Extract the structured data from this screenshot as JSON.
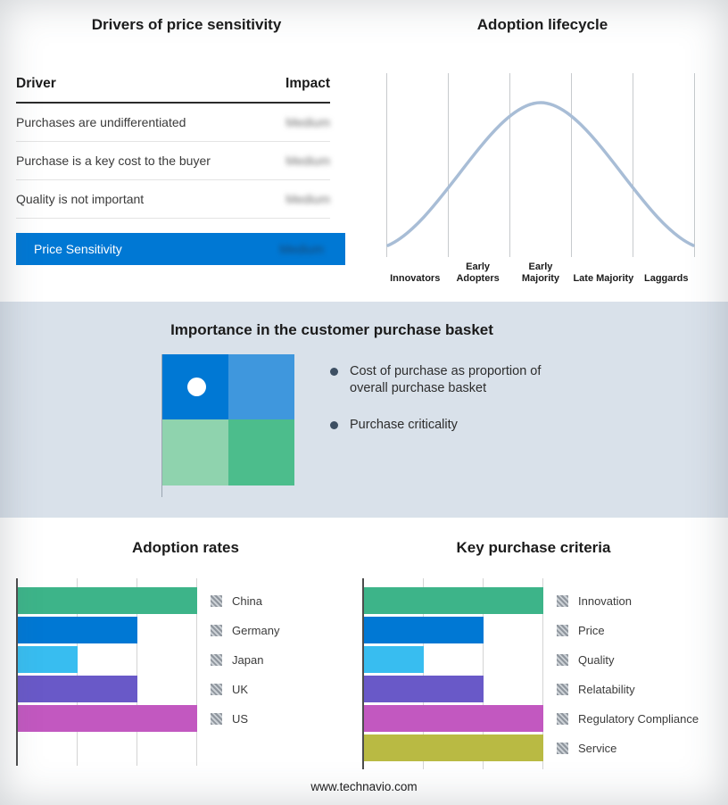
{
  "footer": "www.technavio.com",
  "chart_data": [
    {
      "type": "table",
      "title": "Drivers of price sensitivity",
      "columns": [
        "Driver",
        "Impact"
      ],
      "rows": [
        [
          "Purchases are undifferentiated",
          "Medium"
        ],
        [
          "Purchase is a key cost to the buyer",
          "Medium"
        ],
        [
          "Quality is not important",
          "Medium"
        ]
      ],
      "highlight_row": [
        "Price Sensitivity",
        "Medium"
      ],
      "highlight_color": "#0078d4",
      "impact_values_blurred": true
    },
    {
      "type": "line",
      "title": "Adoption lifecycle",
      "shape": "bell-curve",
      "categories": [
        "Innovators",
        "Early Adopters",
        "Early Majority",
        "Late Majority",
        "Laggards"
      ],
      "curve_color": "#a8bdd6",
      "grid": true
    },
    {
      "type": "bar",
      "title": "Adoption rates",
      "orientation": "horizontal",
      "categories": [
        "China",
        "Germany",
        "Japan",
        "UK",
        "US"
      ],
      "values": [
        3,
        2,
        1,
        2,
        3
      ],
      "colors": [
        "#3db489",
        "#0078d4",
        "#38bdf0",
        "#6959c8",
        "#c258c0"
      ],
      "xlim": [
        0,
        3
      ],
      "grid": true,
      "legend_position": "right",
      "legend_marker": "hatched-gray-square"
    },
    {
      "type": "bar",
      "title": "Key purchase criteria",
      "orientation": "horizontal",
      "categories": [
        "Innovation",
        "Price",
        "Quality",
        "Relatability",
        "Regulatory Compliance",
        "Service"
      ],
      "values": [
        3,
        2,
        1,
        2,
        3,
        3
      ],
      "colors": [
        "#3db489",
        "#0078d4",
        "#38bdf0",
        "#6959c8",
        "#c258c0",
        "#b9ba43"
      ],
      "xlim": [
        0,
        3
      ],
      "grid": true,
      "legend_position": "right",
      "legend_marker": "hatched-gray-square"
    }
  ],
  "basket": {
    "title": "Importance in the customer purchase basket",
    "bullets": [
      "Cost of purchase as proportion of overall purchase basket",
      "Purchase criticality"
    ],
    "quadrant_colors": [
      "#0078d4",
      "#3f97dd",
      "#8fd3ae",
      "#4cbd8c"
    ],
    "background": "#d9e1ea"
  }
}
